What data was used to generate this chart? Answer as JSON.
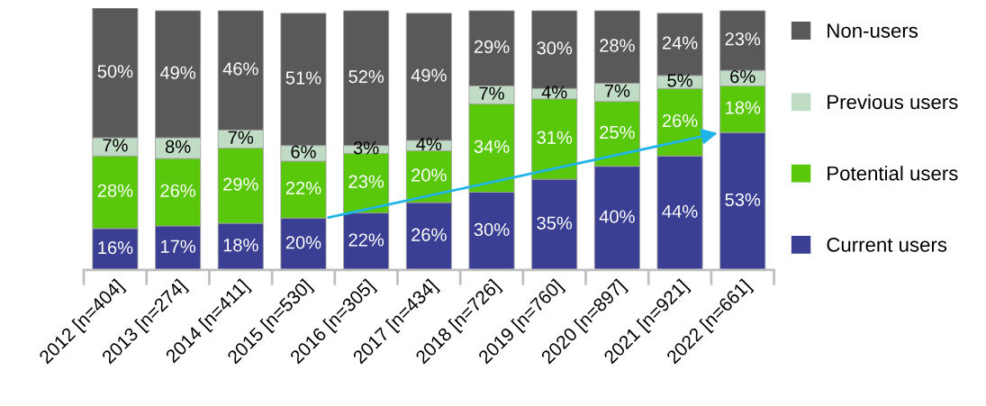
{
  "chart_data": {
    "type": "bar",
    "stacked": true,
    "legend": "right",
    "grid": false,
    "categories": [
      "2012 [n=404]",
      "2013 [n=274]",
      "2014 [n=411]",
      "2015 [n=530]",
      "2016 [n=305]",
      "2017 [n=434]",
      "2018 [n=726]",
      "2019 [n=760]",
      "2020 [n=897]",
      "2021 [n=921]",
      "2022 [n=661]"
    ],
    "series": [
      {
        "name": "Current users",
        "color": "#3b3f94",
        "values": [
          16,
          17,
          18,
          20,
          22,
          26,
          30,
          35,
          40,
          44,
          53
        ],
        "value_labels": [
          "16%",
          "17%",
          "18%",
          "20%",
          "22%",
          "26%",
          "30%",
          "35%",
          "40%",
          "44%",
          "53%"
        ]
      },
      {
        "name": "Potential users",
        "color": "#5ac80a",
        "values": [
          28,
          26,
          29,
          22,
          23,
          20,
          34,
          31,
          25,
          26,
          18
        ],
        "value_labels": [
          "28%",
          "26%",
          "29%",
          "22%",
          "23%",
          "20%",
          "34%",
          "31%",
          "25%",
          "26%",
          "18%"
        ]
      },
      {
        "name": "Previous users",
        "color": "#c0dcc4",
        "values": [
          7,
          8,
          7,
          6,
          3,
          4,
          7,
          4,
          7,
          5,
          6
        ],
        "value_labels": [
          "7%",
          "8%",
          "7%",
          "6%",
          "3%",
          "4%",
          "7%",
          "4%",
          "7%",
          "5%",
          "6%"
        ]
      },
      {
        "name": "Non-users",
        "color": "#595959",
        "values": [
          50,
          49,
          46,
          51,
          52,
          49,
          29,
          30,
          28,
          24,
          23
        ],
        "value_labels": [
          "50%",
          "49%",
          "46%",
          "51%",
          "52%",
          "49%",
          "29%",
          "30%",
          "28%",
          "24%",
          "23%"
        ]
      }
    ]
  }
}
